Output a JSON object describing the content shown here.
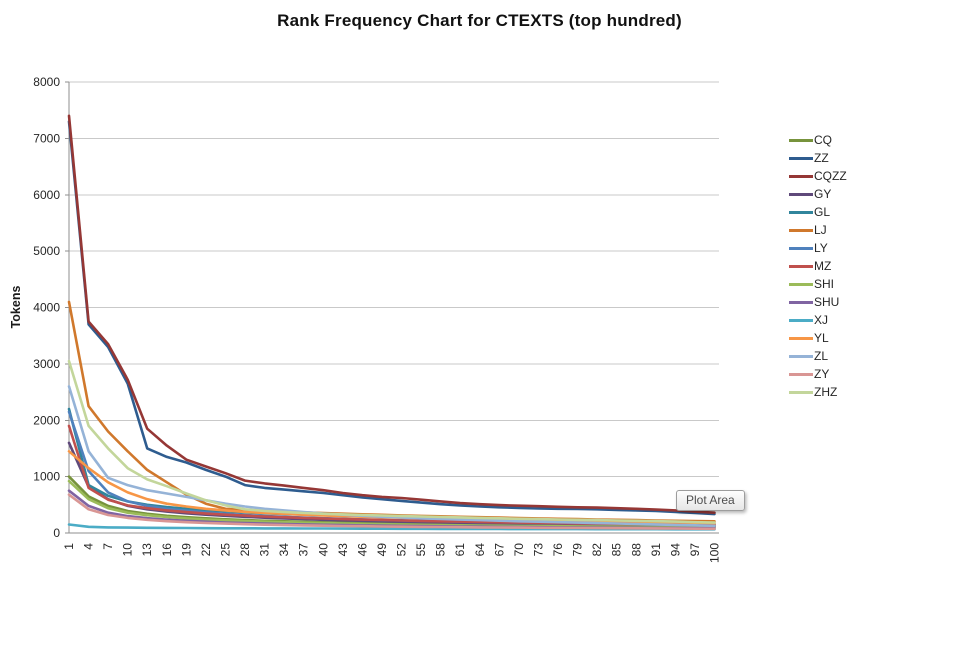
{
  "title": "Rank Frequency Chart for CTEXTS (top hundred)",
  "tooltip_label": "Plot Area",
  "chart_data": {
    "type": "line",
    "title": "Rank Frequency Chart for CTEXTS (top hundred)",
    "xlabel": "",
    "ylabel": "Tokens",
    "ylim": [
      0,
      8000
    ],
    "ytick_step": 1000,
    "grid": "horizontal",
    "legend_position": "right",
    "x_range": [
      1,
      100
    ],
    "x": [
      1,
      4,
      7,
      10,
      13,
      16,
      19,
      22,
      25,
      28,
      31,
      34,
      37,
      40,
      43,
      46,
      49,
      52,
      55,
      58,
      61,
      64,
      67,
      70,
      73,
      76,
      79,
      82,
      85,
      88,
      91,
      94,
      97,
      100
    ],
    "series": [
      {
        "name": "CQ",
        "color": "#77933C",
        "values": [
          1000,
          650,
          480,
          390,
          340,
          305,
          280,
          260,
          243,
          229,
          217,
          207,
          198,
          190,
          183,
          177,
          171,
          166,
          161,
          157,
          153,
          149,
          145,
          142,
          139,
          136,
          133,
          130,
          128,
          126,
          124,
          122,
          120,
          118
        ]
      },
      {
        "name": "ZZ",
        "color": "#2E5C8F",
        "values": [
          7300,
          3700,
          3300,
          2650,
          1500,
          1350,
          1250,
          1120,
          1000,
          850,
          800,
          770,
          740,
          710,
          670,
          630,
          600,
          570,
          540,
          510,
          490,
          470,
          455,
          445,
          435,
          430,
          425,
          420,
          410,
          400,
          390,
          375,
          355,
          335
        ]
      },
      {
        "name": "CQZZ",
        "color": "#953735",
        "values": [
          7400,
          3750,
          3350,
          2720,
          1850,
          1550,
          1300,
          1180,
          1060,
          930,
          880,
          840,
          800,
          760,
          710,
          670,
          640,
          620,
          590,
          560,
          530,
          510,
          495,
          485,
          475,
          465,
          455,
          450,
          440,
          430,
          415,
          400,
          380,
          360
        ]
      },
      {
        "name": "GY",
        "color": "#5F497A",
        "values": [
          1600,
          820,
          600,
          480,
          420,
          380,
          350,
          325,
          305,
          288,
          272,
          258,
          246,
          235,
          225,
          216,
          208,
          200,
          193,
          186,
          180,
          174,
          168,
          163,
          158,
          153,
          148,
          143,
          139,
          135,
          131,
          127,
          123,
          120
        ]
      },
      {
        "name": "GL",
        "color": "#31859C",
        "values": [
          2200,
          850,
          660,
          560,
          500,
          460,
          430,
          405,
          385,
          365,
          350,
          338,
          326,
          315,
          305,
          296,
          288,
          280,
          272,
          265,
          258,
          251,
          244,
          238,
          232,
          226,
          220,
          214,
          208,
          202,
          196,
          185,
          172,
          160
        ]
      },
      {
        "name": "LJ",
        "color": "#D0782C",
        "values": [
          4100,
          2250,
          1800,
          1450,
          1120,
          900,
          680,
          520,
          430,
          408,
          392,
          378,
          365,
          353,
          342,
          332,
          322,
          313,
          304,
          296,
          288,
          280,
          273,
          266,
          259,
          252,
          246,
          240,
          234,
          228,
          222,
          217,
          212,
          207
        ]
      },
      {
        "name": "LY",
        "color": "#4F81BD",
        "values": [
          2150,
          1100,
          720,
          560,
          480,
          430,
          395,
          365,
          340,
          320,
          302,
          288,
          275,
          263,
          252,
          242,
          233,
          225,
          217,
          210,
          203,
          197,
          191,
          185,
          180,
          175,
          170,
          165,
          160,
          155,
          150,
          145,
          140,
          135
        ]
      },
      {
        "name": "MZ",
        "color": "#C0504D",
        "values": [
          1900,
          800,
          590,
          490,
          440,
          400,
          370,
          345,
          325,
          308,
          293,
          280,
          268,
          257,
          247,
          238,
          230,
          222,
          215,
          208,
          202,
          196,
          190,
          185,
          180,
          175,
          170,
          166,
          162,
          158,
          154,
          150,
          147,
          144
        ]
      },
      {
        "name": "SHI",
        "color": "#9BBB59",
        "values": [
          920,
          600,
          440,
          360,
          315,
          283,
          259,
          240,
          225,
          212,
          201,
          191,
          183,
          175,
          168,
          162,
          156,
          151,
          146,
          141,
          137,
          133,
          129,
          126,
          123,
          120,
          117,
          114,
          111,
          108,
          106,
          104,
          102,
          100
        ]
      },
      {
        "name": "SHU",
        "color": "#8064A2",
        "values": [
          750,
          480,
          360,
          300,
          262,
          236,
          216,
          200,
          187,
          176,
          167,
          159,
          152,
          146,
          140,
          135,
          130,
          126,
          122,
          118,
          115,
          112,
          109,
          106,
          103,
          100,
          98,
          96,
          94,
          92,
          90,
          88,
          86,
          85
        ]
      },
      {
        "name": "XJ",
        "color": "#4BACC6",
        "values": [
          150,
          110,
          100,
          95,
          92,
          90,
          88,
          86,
          84,
          83,
          82,
          81,
          80,
          79,
          78,
          77,
          76,
          75,
          74,
          73,
          72,
          71,
          71,
          70,
          70,
          69,
          69,
          68,
          68,
          67,
          67,
          66,
          66,
          65
        ]
      },
      {
        "name": "YL",
        "color": "#F79646",
        "values": [
          1450,
          1150,
          900,
          720,
          600,
          520,
          470,
          430,
          400,
          375,
          355,
          340,
          325,
          312,
          300,
          290,
          280,
          271,
          263,
          255,
          248,
          241,
          235,
          229,
          223,
          218,
          213,
          208,
          203,
          198,
          193,
          188,
          182,
          176
        ]
      },
      {
        "name": "ZL",
        "color": "#95B3D7",
        "values": [
          2600,
          1450,
          980,
          850,
          760,
          700,
          640,
          580,
          520,
          470,
          430,
          400,
          370,
          345,
          325,
          305,
          290,
          275,
          260,
          248,
          238,
          228,
          218,
          208,
          200,
          192,
          184,
          176,
          168,
          160,
          152,
          144,
          136,
          128
        ]
      },
      {
        "name": "ZY",
        "color": "#D99694",
        "values": [
          680,
          420,
          320,
          268,
          234,
          210,
          192,
          178,
          166,
          156,
          148,
          141,
          135,
          129,
          124,
          120,
          116,
          112,
          109,
          106,
          103,
          100,
          97,
          95,
          93,
          91,
          89,
          87,
          85,
          83,
          81,
          79,
          77,
          75
        ]
      },
      {
        "name": "ZHZ",
        "color": "#C3D69B",
        "values": [
          3050,
          1900,
          1500,
          1150,
          950,
          830,
          700,
          580,
          490,
          420,
          390,
          370,
          355,
          340,
          330,
          320,
          310,
          300,
          292,
          284,
          276,
          268,
          260,
          252,
          246,
          240,
          234,
          228,
          222,
          216,
          210,
          202,
          192,
          185
        ]
      }
    ]
  }
}
